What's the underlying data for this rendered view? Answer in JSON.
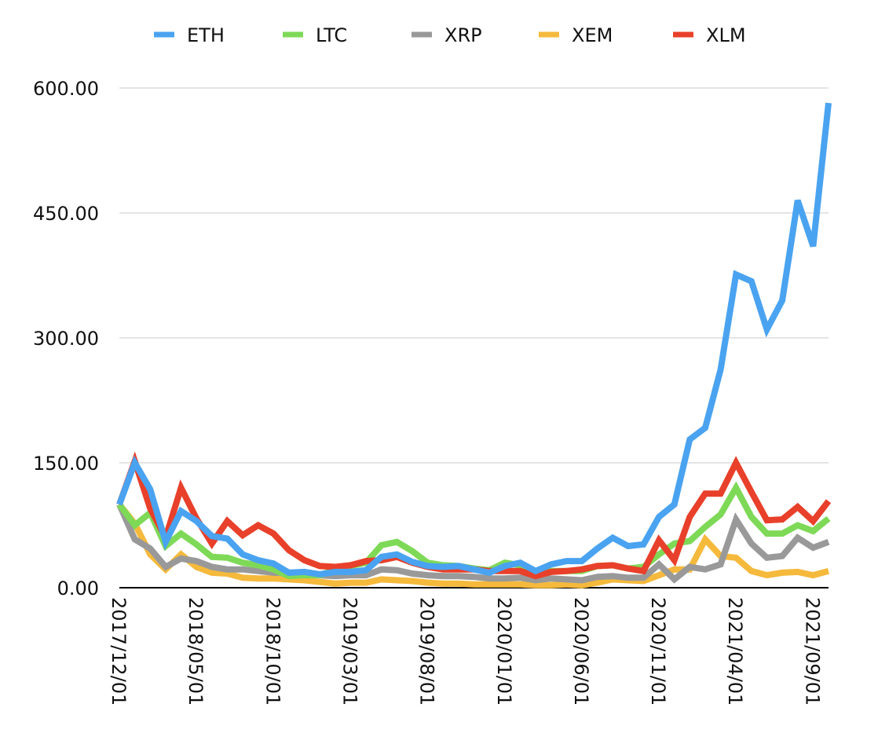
{
  "chart_data": {
    "type": "line",
    "title": "",
    "xlabel": "",
    "ylabel": "",
    "ylim": [
      0,
      600
    ],
    "y_ticks": [
      "0.00",
      "150.00",
      "300.00",
      "450.00",
      "600.00"
    ],
    "x_tick_labels": [
      "2017/12/01",
      "2018/05/01",
      "2018/10/01",
      "2019/03/01",
      "2019/08/01",
      "2020/01/01",
      "2020/06/01",
      "2020/11/01",
      "2021/04/01",
      "2021/09/01"
    ],
    "grid": "horizontal",
    "legend_position": "top",
    "x": [
      "2017/12/01",
      "2018/01/01",
      "2018/02/01",
      "2018/03/01",
      "2018/04/01",
      "2018/05/01",
      "2018/06/01",
      "2018/07/01",
      "2018/08/01",
      "2018/09/01",
      "2018/10/01",
      "2018/11/01",
      "2018/12/01",
      "2019/01/01",
      "2019/02/01",
      "2019/03/01",
      "2019/04/01",
      "2019/05/01",
      "2019/06/01",
      "2019/07/01",
      "2019/08/01",
      "2019/09/01",
      "2019/10/01",
      "2019/11/01",
      "2019/12/01",
      "2020/01/01",
      "2020/02/01",
      "2020/03/01",
      "2020/04/01",
      "2020/05/01",
      "2020/06/01",
      "2020/07/01",
      "2020/08/01",
      "2020/09/01",
      "2020/10/01",
      "2020/11/01",
      "2020/12/01",
      "2021/01/01",
      "2021/02/01",
      "2021/03/01",
      "2021/04/01",
      "2021/05/01",
      "2021/06/01",
      "2021/07/01",
      "2021/08/01",
      "2021/09/01",
      "2021/10/01"
    ],
    "series": [
      {
        "name": "ETH",
        "color": "#4aa3f0",
        "values": [
          100,
          150,
          118,
          55,
          92,
          80,
          62,
          59,
          40,
          33,
          29,
          18,
          19,
          16,
          19,
          19,
          21,
          37,
          40,
          31,
          26,
          25,
          26,
          22,
          18,
          26,
          30,
          20,
          28,
          32,
          32,
          47,
          60,
          50,
          52,
          85,
          100,
          178,
          192,
          262,
          376,
          368,
          310,
          345,
          465,
          410,
          582
        ]
      },
      {
        "name": "LTC",
        "color": "#7ed957",
        "values": [
          100,
          75,
          90,
          50,
          65,
          52,
          37,
          36,
          30,
          27,
          22,
          14,
          15,
          15,
          22,
          26,
          30,
          51,
          55,
          44,
          30,
          27,
          26,
          23,
          21,
          30,
          27,
          18,
          20,
          20,
          20,
          26,
          27,
          23,
          25,
          40,
          53,
          56,
          73,
          88,
          120,
          85,
          65,
          65,
          75,
          68,
          83
        ]
      },
      {
        "name": "XRP",
        "color": "#999999",
        "values": [
          100,
          58,
          47,
          25,
          35,
          32,
          25,
          22,
          22,
          20,
          18,
          18,
          17,
          15,
          14,
          15,
          15,
          22,
          21,
          17,
          15,
          14,
          14,
          13,
          11,
          11,
          12,
          9,
          11,
          10,
          9,
          13,
          14,
          12,
          12,
          28,
          10,
          25,
          22,
          28,
          82,
          53,
          36,
          38,
          60,
          48,
          55
        ]
      },
      {
        "name": "XEM",
        "color": "#f5b93c",
        "values": [
          100,
          77,
          40,
          22,
          40,
          25,
          18,
          17,
          12,
          11,
          11,
          10,
          9,
          7,
          5,
          6,
          6,
          10,
          9,
          8,
          6,
          5,
          5,
          4,
          4,
          4,
          4,
          3,
          3,
          4,
          3,
          6,
          10,
          9,
          8,
          15,
          22,
          22,
          58,
          38,
          36,
          20,
          15,
          18,
          19,
          15,
          20
        ]
      },
      {
        "name": "XLM",
        "color": "#e8402a",
        "values": [
          100,
          152,
          95,
          60,
          120,
          83,
          53,
          80,
          63,
          75,
          65,
          45,
          33,
          26,
          25,
          27,
          32,
          33,
          37,
          30,
          25,
          22,
          22,
          22,
          20,
          20,
          20,
          14,
          19,
          20,
          22,
          26,
          27,
          23,
          20,
          57,
          33,
          85,
          113,
          113,
          150,
          115,
          81,
          82,
          97,
          80,
          104
        ]
      }
    ]
  }
}
